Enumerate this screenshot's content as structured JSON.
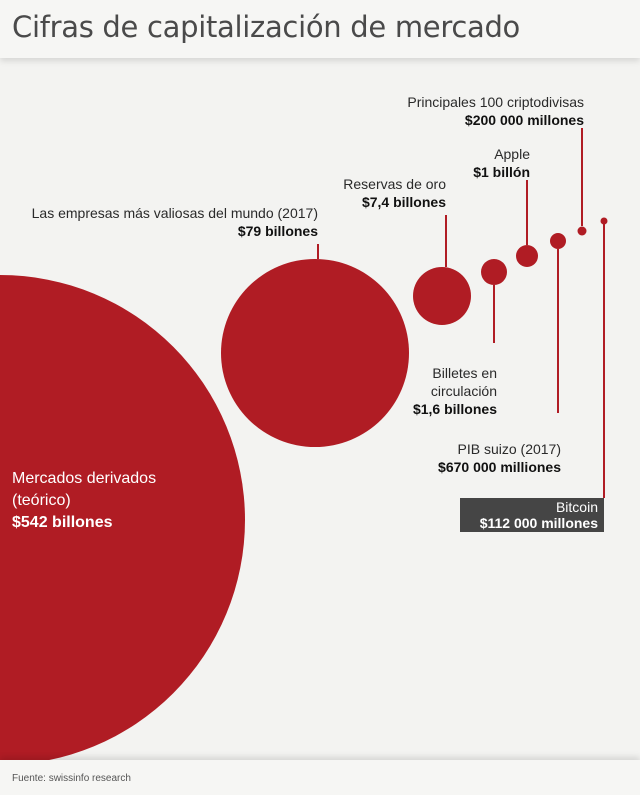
{
  "title": "Cifras de capitalización de mercado",
  "source": "Fuente: swissinfo research",
  "colors": {
    "bubble": "#b01c24",
    "leader": "#b01c24",
    "highlight_box": "#454545",
    "background": "#f3f3f1"
  },
  "chart_data": {
    "type": "bubble",
    "title": "Cifras de capitalización de mercado",
    "items": [
      {
        "label_lines": [
          "Mercados derivados",
          "(teórico)"
        ],
        "value_label": "$542 billones",
        "value_usd": 542000000000000
      },
      {
        "label_lines": [
          "Las empresas más valiosas del mundo (2017)"
        ],
        "value_label": "$79 billones",
        "value_usd": 79000000000000
      },
      {
        "label_lines": [
          "Reservas de oro"
        ],
        "value_label": "$7,4 billones",
        "value_usd": 7400000000000
      },
      {
        "label_lines": [
          "Billetes en",
          "circulación"
        ],
        "value_label": "$1,6 billones",
        "value_usd": 1600000000000
      },
      {
        "label_lines": [
          "Apple"
        ],
        "value_label": "$1 billón",
        "value_usd": 1000000000000
      },
      {
        "label_lines": [
          "PIB suizo (2017)"
        ],
        "value_label": "$670 000 milliones",
        "value_usd": 670000000000
      },
      {
        "label_lines": [
          "Principales 100 criptodivisas"
        ],
        "value_label": "$200 000 millones",
        "value_usd": 200000000000
      },
      {
        "label_lines": [
          "Bitcoin"
        ],
        "value_label": "$112 000 millones",
        "value_usd": 112000000000,
        "highlighted": true
      }
    ]
  }
}
